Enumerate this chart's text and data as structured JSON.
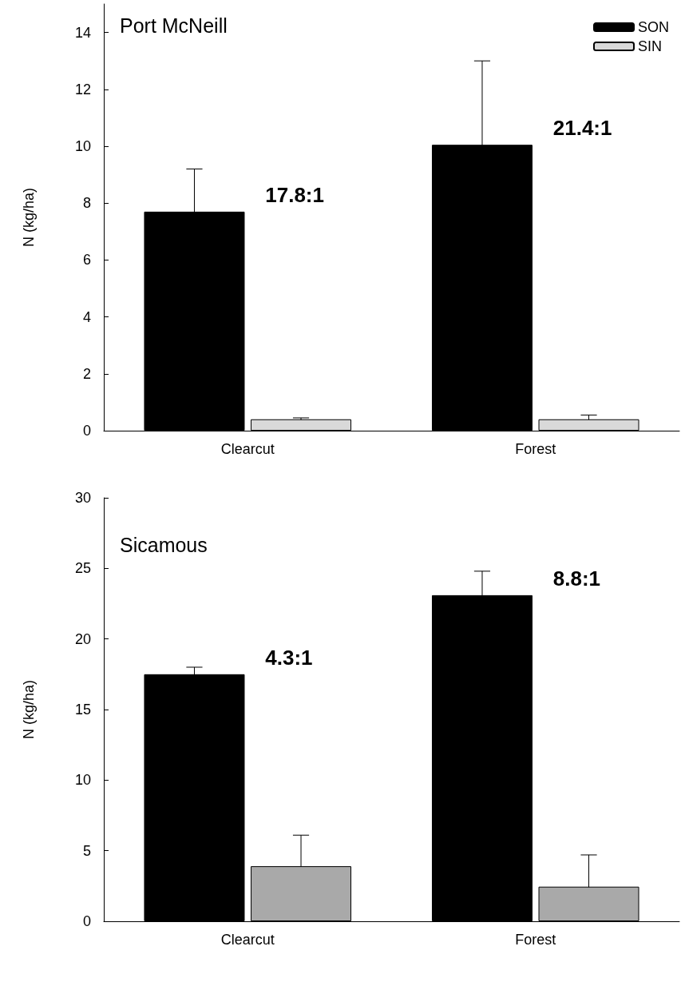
{
  "chart_data": [
    {
      "type": "bar",
      "title": "Port McNeill",
      "ylabel": "N (kg/ha)",
      "categories": [
        "Clearcut",
        "Forest"
      ],
      "series": [
        {
          "name": "SON",
          "color": "#000000",
          "values": [
            7.7,
            10.05
          ],
          "errors": [
            1.5,
            2.95
          ]
        },
        {
          "name": "SIN",
          "color": "#d9d9d9",
          "values": [
            0.4,
            0.4
          ],
          "errors": [
            0.05,
            0.15
          ]
        }
      ],
      "ylim": [
        0,
        15
      ],
      "yticks": [
        0,
        2,
        4,
        6,
        8,
        10,
        12,
        14
      ],
      "grid": false,
      "legend": "top right",
      "annotations": [
        "17.8:1",
        "21.4:1"
      ]
    },
    {
      "type": "bar",
      "title": "Sicamous",
      "ylabel": "N (kg/ha)",
      "categories": [
        "Clearcut",
        "Forest"
      ],
      "series": [
        {
          "color": "#000000",
          "values": [
            17.5,
            23.1
          ],
          "errors": [
            0.5,
            1.7
          ]
        },
        {
          "color": "#a9a9a9",
          "values": [
            3.9,
            2.45
          ],
          "errors": [
            2.2,
            2.25
          ]
        }
      ],
      "ylim": [
        0,
        30
      ],
      "yticks": [
        0,
        5,
        10,
        15,
        20,
        25,
        30
      ],
      "grid": false,
      "legend": false,
      "annotations": [
        "4.3:1",
        "8.8:1"
      ]
    }
  ]
}
